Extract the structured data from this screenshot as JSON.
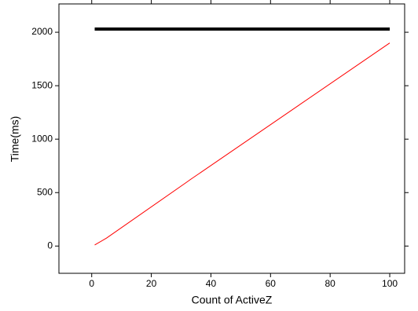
{
  "chart_data": {
    "type": "line",
    "x_label": "Count of ActiveZ",
    "y_label": "Time(ms)",
    "xlim": [
      -11,
      105
    ],
    "xticks": [
      0,
      20,
      40,
      60,
      80,
      100
    ],
    "ylim": [
      -255,
      2265
    ],
    "yticks": [
      0,
      500,
      1000,
      1500,
      2000
    ],
    "grid": false,
    "series": [
      {
        "color": "#000000",
        "width": 4,
        "x": [
          1,
          100
        ],
        "values": [
          2030,
          2030
        ]
      },
      {
        "color": "#ff0000",
        "width": 1,
        "x": [
          1,
          5,
          32,
          33,
          100
        ],
        "values": [
          10,
          75,
          600,
          620,
          1900
        ]
      }
    ]
  }
}
